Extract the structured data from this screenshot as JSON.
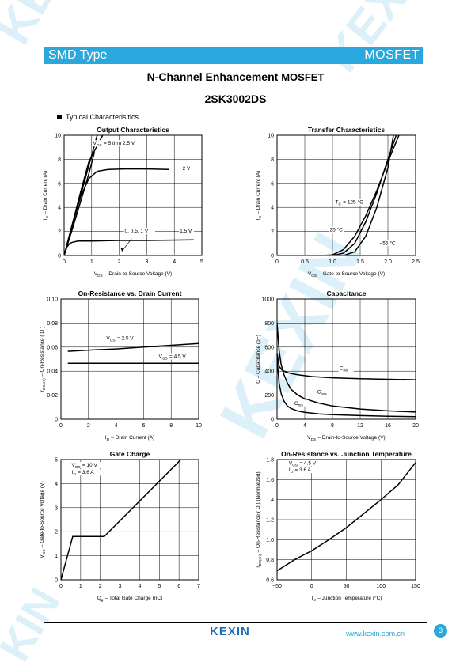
{
  "header": {
    "left": "SMD Type",
    "right": "MOSFET"
  },
  "title": {
    "main": "N-Channel Enhancement ",
    "suffix": "MOSFET"
  },
  "part_number": "2SK3002DS",
  "section_title": "Typical  Characterisitics",
  "footer": {
    "logo": "KEXIN",
    "url": "www.kexin.com.cn",
    "page": "3"
  },
  "colors": {
    "accent": "#2aa7dd",
    "logo": "#1f6fb8"
  },
  "chart_data": [
    {
      "id": "output",
      "type": "line",
      "title": "Output Characteristics",
      "xlabel": "V_DS  –  Drain-to-Source Voltage (V)",
      "ylabel": "I_D  –  Drain Current (A)",
      "xlim": [
        0,
        5
      ],
      "ylim": [
        0,
        10
      ],
      "xticks": [
        "0",
        "1",
        "2",
        "3",
        "4",
        "5"
      ],
      "yticks": [
        "0",
        "2",
        "4",
        "6",
        "8",
        "10"
      ],
      "series": [
        {
          "x": [
            0,
            0.3,
            0.6,
            0.9,
            1.2
          ],
          "y": [
            0,
            2.5,
            5,
            7.5,
            10
          ]
        },
        {
          "x": [
            0,
            0.3,
            0.6,
            0.9,
            1.1
          ],
          "y": [
            0,
            2.2,
            4.5,
            6.8,
            8.6
          ]
        },
        {
          "x": [
            0,
            0.3,
            0.6,
            0.9,
            1.4
          ],
          "y": [
            0,
            2.6,
            5.3,
            7.8,
            10
          ]
        },
        {
          "x": [
            0,
            0.3,
            0.6,
            0.9,
            1.2,
            1.6,
            2.2,
            3,
            3.8
          ],
          "y": [
            0,
            2.6,
            4.9,
            6.4,
            7,
            7.15,
            7.2,
            7.2,
            7.15
          ]
        },
        {
          "x": [
            0,
            0.1,
            0.2,
            0.3,
            0.5,
            1,
            2,
            3,
            4.7
          ],
          "y": [
            0,
            0.7,
            1,
            1.1,
            1.2,
            1.2,
            1.25,
            1.25,
            1.3
          ]
        }
      ],
      "annotations": [
        {
          "text": "V_GS = 5 thru 2.5 V",
          "x": 1.05,
          "y": 9.2
        },
        {
          "text": "2 V",
          "x": 4.3,
          "y": 7.1
        },
        {
          "text": "1.5 V",
          "x": 4.2,
          "y": 1.9
        },
        {
          "text": "0, 0.5, 1 V",
          "x": 2.2,
          "y": 1.9
        }
      ]
    },
    {
      "id": "transfer",
      "type": "line",
      "title": "Transfer Characteristics",
      "xlabel": "V_GS  –  Gate-to-Source Voltage (V)",
      "ylabel": "I_D  –  Drain Current (A)",
      "xlim": [
        0,
        2.5
      ],
      "ylim": [
        0,
        10
      ],
      "xticks": [
        "0",
        "0.5",
        "1.0",
        "1.5",
        "2.0",
        "2.5"
      ],
      "yticks": [
        "0",
        "2",
        "4",
        "6",
        "8",
        "10"
      ],
      "series": [
        {
          "name": "T_C = 125 °C",
          "x": [
            0,
            0.8,
            1.0,
            1.2,
            1.4,
            1.6,
            1.8,
            2.0,
            2.2
          ],
          "y": [
            0,
            0,
            0.05,
            0.5,
            1.6,
            3.3,
            5.4,
            7.8,
            10
          ]
        },
        {
          "name": "25 °C",
          "x": [
            0,
            1.0,
            1.2,
            1.4,
            1.6,
            1.8,
            2.0,
            2.15
          ],
          "y": [
            0,
            0,
            0.2,
            1.0,
            2.8,
            5.2,
            8.0,
            10
          ]
        },
        {
          "name": "−55 °C",
          "x": [
            0,
            1.2,
            1.4,
            1.6,
            1.8,
            2.0,
            2.1
          ],
          "y": [
            0,
            0,
            0.3,
            1.6,
            4.0,
            7.3,
            10
          ]
        }
      ],
      "annotations": [
        {
          "text": "T_C = 125 °C",
          "x": 1.05,
          "y": 4.3
        },
        {
          "text": "25 °C",
          "x": 0.95,
          "y": 2.0
        },
        {
          "text": "−55 °C",
          "x": 1.85,
          "y": 0.9
        }
      ]
    },
    {
      "id": "onres",
      "type": "line",
      "title": "On-Resistance vs. Drain Current",
      "xlabel": "I_D  –  Drain Current (A)",
      "ylabel": "r_DS(on)  –  On-Resistance ( Ω )",
      "xlim": [
        0,
        10
      ],
      "ylim": [
        0,
        0.1
      ],
      "xticks": [
        "0",
        "2",
        "4",
        "6",
        "8",
        "10"
      ],
      "yticks": [
        "0",
        "0.02",
        "0.04",
        "0.06",
        "0.08",
        "0.10"
      ],
      "series": [
        {
          "name": "V_GS = 2.5 V",
          "x": [
            0.5,
            2,
            4,
            6,
            8,
            10
          ],
          "y": [
            0.0565,
            0.0575,
            0.0585,
            0.06,
            0.0615,
            0.063
          ]
        },
        {
          "name": "V_GS = 4.5 V",
          "x": [
            0.5,
            2,
            4,
            6,
            8,
            10
          ],
          "y": [
            0.0465,
            0.0465,
            0.0465,
            0.0465,
            0.0465,
            0.0465
          ]
        }
      ],
      "annotations": [
        {
          "text": "V_GS = 2.5 V",
          "x": 3.3,
          "y": 0.066
        },
        {
          "text": "V_GS = 4.5 V",
          "x": 7.1,
          "y": 0.051
        }
      ]
    },
    {
      "id": "capacitance",
      "type": "line",
      "title": "Capacitance",
      "xlabel": "V_DS  –  Drain-to-Source Voltage (V)",
      "ylabel": "C  –  Capacitance (pF)",
      "xlim": [
        0,
        20
      ],
      "ylim": [
        0,
        1000
      ],
      "xticks": [
        "0",
        "4",
        "8",
        "12",
        "16",
        "20"
      ],
      "yticks": [
        "0",
        "200",
        "400",
        "600",
        "800",
        "1000"
      ],
      "series": [
        {
          "name": "C_iss",
          "x": [
            0,
            0.3,
            0.7,
            1.2,
            2,
            3,
            5,
            8,
            12,
            16,
            20
          ],
          "y": [
            550,
            440,
            410,
            395,
            380,
            370,
            355,
            345,
            337,
            332,
            328
          ]
        },
        {
          "name": "C_oss",
          "x": [
            0,
            0.3,
            0.6,
            1,
            1.5,
            2,
            3,
            4,
            6,
            8,
            12,
            16,
            20
          ],
          "y": [
            800,
            570,
            450,
            370,
            300,
            250,
            200,
            170,
            135,
            110,
            85,
            70,
            60
          ]
        },
        {
          "name": "C_rss",
          "x": [
            0,
            0.3,
            0.6,
            1,
            1.5,
            2,
            3,
            4,
            6,
            8,
            12,
            16,
            20
          ],
          "y": [
            500,
            300,
            210,
            150,
            110,
            90,
            68,
            58,
            45,
            38,
            30,
            25,
            22
          ]
        }
      ],
      "annotations": [
        {
          "text": "C_iss",
          "x": 9,
          "y": 410
        },
        {
          "text": "C_oss",
          "x": 5.8,
          "y": 215
        },
        {
          "text": "C_rss",
          "x": 2.5,
          "y": 120
        }
      ]
    },
    {
      "id": "gatecharge",
      "type": "line",
      "title": "Gate Charge",
      "xlabel": "Q_g  –  Total Gate Charge (nC)",
      "ylabel": "V_GS  –  Gate-to-Source Voltage (V)",
      "xlim": [
        0,
        7
      ],
      "ylim": [
        0,
        5
      ],
      "xticks": [
        "0",
        "1",
        "2",
        "3",
        "4",
        "5",
        "6",
        "7"
      ],
      "yticks": [
        "0",
        "1",
        "2",
        "3",
        "4",
        "5"
      ],
      "series": [
        {
          "x": [
            0,
            0.6,
            2.2,
            6.1
          ],
          "y": [
            0,
            1.8,
            1.8,
            5
          ]
        }
      ],
      "annotations": [
        {
          "text": "V_DS = 10 V",
          "x": 0.55,
          "y": 4.7
        },
        {
          "text": "I_D = 3.6 A",
          "x": 0.55,
          "y": 4.4
        }
      ]
    },
    {
      "id": "onres_temp",
      "type": "line",
      "title": "On-Resistance vs. Junction Temperature",
      "xlabel": "T_J  –  Junction Temperature (°C)",
      "ylabel": "r_DS(on)  –  On-Resistance ( Ω ) (Normalized)",
      "xlim": [
        -50,
        150
      ],
      "ylim": [
        0.6,
        1.8
      ],
      "xticks": [
        "−50",
        "0",
        "50",
        "100",
        "150"
      ],
      "yticks": [
        "0.6",
        "0.8",
        "1.0",
        "1.2",
        "1.4",
        "1.6",
        "1.8"
      ],
      "series": [
        {
          "x": [
            -50,
            -25,
            0,
            25,
            50,
            75,
            100,
            125,
            150
          ],
          "y": [
            0.69,
            0.8,
            0.89,
            1.0,
            1.12,
            1.26,
            1.4,
            1.55,
            1.77
          ]
        }
      ],
      "annotations": [
        {
          "text": "V_GS = 4.5 V",
          "x": -33,
          "y": 1.75
        },
        {
          "text": "I_D = 3.6 A",
          "x": -33,
          "y": 1.68
        }
      ]
    }
  ]
}
